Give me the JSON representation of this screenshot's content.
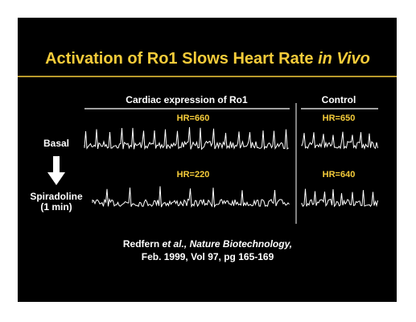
{
  "slide": {
    "title": {
      "main": "Activation of Ro1 Slows Heart Rate",
      "italic": "in Vivo"
    },
    "columns": {
      "experiment": "Cardiac expression of Ro1",
      "control": "Control"
    },
    "rows": [
      {
        "label": [
          "Basal"
        ],
        "experiment_hr": "HR=660",
        "control_hr": "HR=650"
      },
      {
        "label": [
          "Spiradoline",
          "(1 min)"
        ],
        "experiment_hr": "HR=220",
        "control_hr": "HR=640"
      }
    ],
    "citation": {
      "author": "Redfern",
      "etal": "et al.,",
      "journal": "Nature Biotechnology,",
      "line2": "Feb. 1999, Vol 97, pg 165-169"
    }
  }
}
